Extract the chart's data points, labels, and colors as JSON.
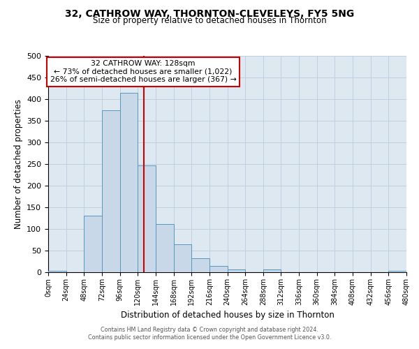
{
  "title": "32, CATHROW WAY, THORNTON-CLEVELEYS, FY5 5NG",
  "subtitle": "Size of property relative to detached houses in Thornton",
  "xlabel": "Distribution of detached houses by size in Thornton",
  "ylabel": "Number of detached properties",
  "bin_edges": [
    0,
    24,
    48,
    72,
    96,
    120,
    144,
    168,
    192,
    216,
    240,
    264,
    288,
    312,
    336,
    360,
    384,
    408,
    432,
    456,
    480
  ],
  "bar_heights": [
    4,
    0,
    130,
    375,
    415,
    247,
    112,
    65,
    33,
    15,
    7,
    0,
    6,
    0,
    0,
    0,
    0,
    0,
    0,
    3
  ],
  "bar_facecolor": "#c8d8e8",
  "bar_edgecolor": "#5599bb",
  "property_size": 128,
  "vline_color": "#cc0000",
  "annotation_title": "32 CATHROW WAY: 128sqm",
  "annotation_line1": "← 73% of detached houses are smaller (1,022)",
  "annotation_line2": "26% of semi-detached houses are larger (367) →",
  "annotation_box_edgecolor": "#cc0000",
  "annotation_box_facecolor": "#ffffff",
  "ylim": [
    0,
    500
  ],
  "yticks": [
    0,
    50,
    100,
    150,
    200,
    250,
    300,
    350,
    400,
    450,
    500
  ],
  "grid_color": "#bbccdd",
  "background_color": "#dde8f0",
  "footer_line1": "Contains HM Land Registry data © Crown copyright and database right 2024.",
  "footer_line2": "Contains public sector information licensed under the Open Government Licence v3.0.",
  "tick_labels": [
    "0sqm",
    "24sqm",
    "48sqm",
    "72sqm",
    "96sqm",
    "120sqm",
    "144sqm",
    "168sqm",
    "192sqm",
    "216sqm",
    "240sqm",
    "264sqm",
    "288sqm",
    "312sqm",
    "336sqm",
    "360sqm",
    "384sqm",
    "408sqm",
    "432sqm",
    "456sqm",
    "480sqm"
  ]
}
